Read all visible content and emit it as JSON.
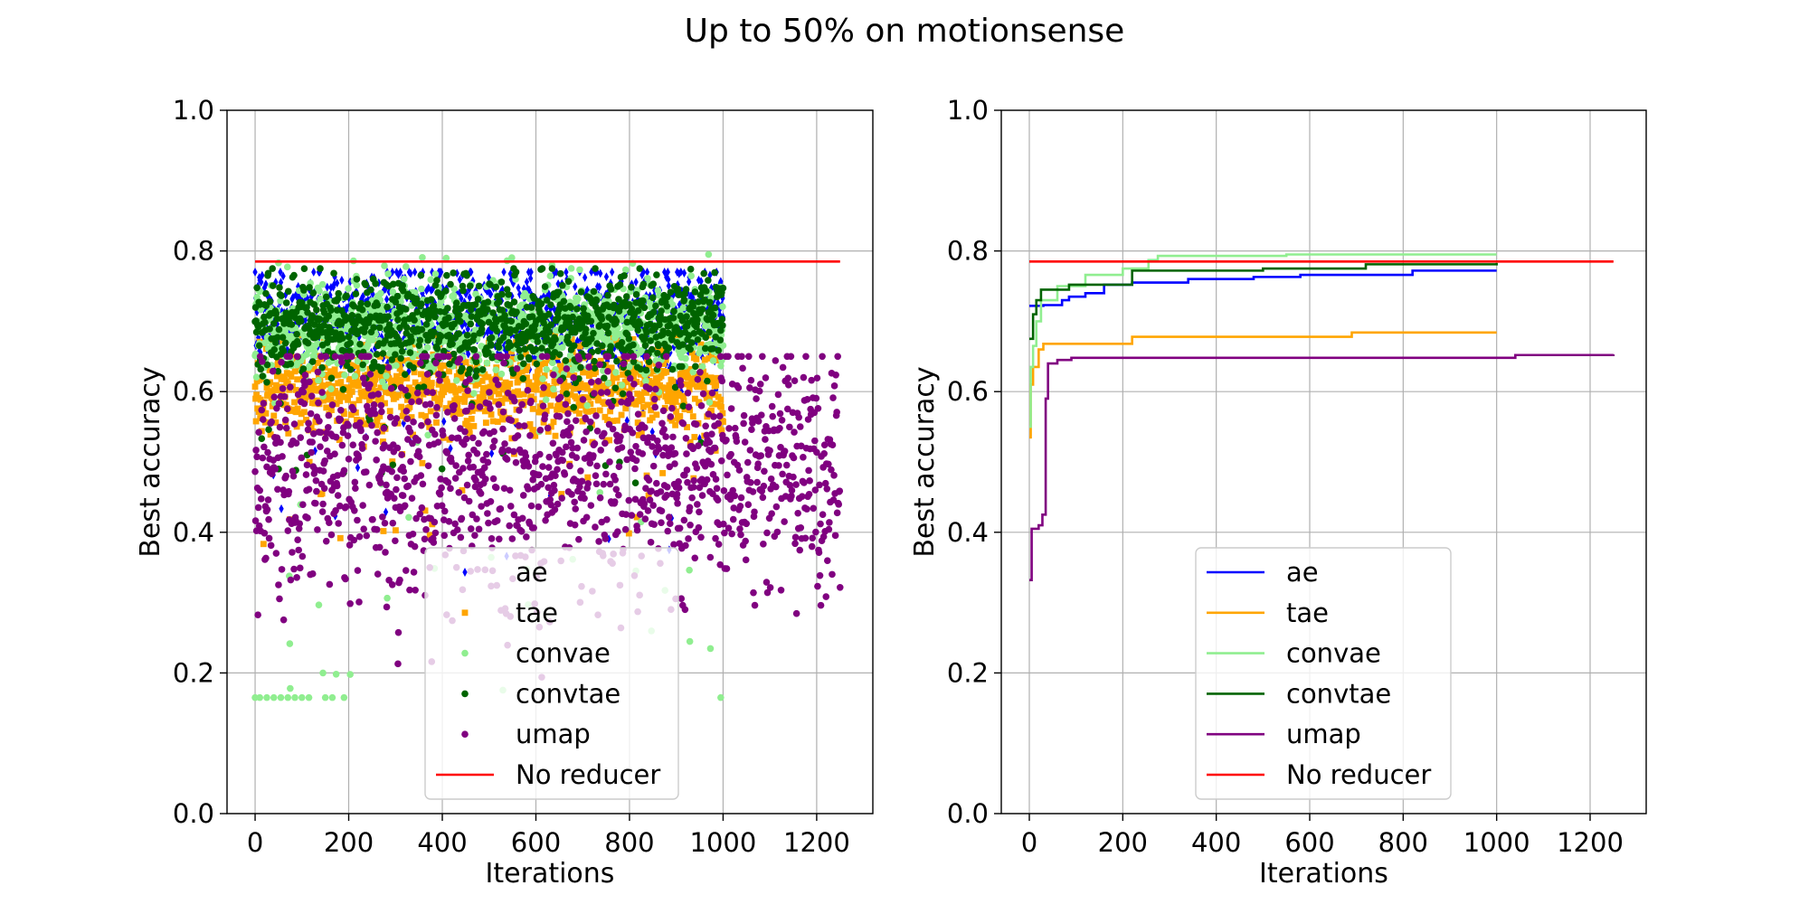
{
  "title": "Up to 50% on motionsense",
  "chart_data": [
    {
      "type": "scatter",
      "xlabel": "Iterations",
      "ylabel": "Best accuracy",
      "xlim": [
        -60,
        1320
      ],
      "ylim": [
        0.0,
        1.0
      ],
      "xticks": [
        0,
        200,
        400,
        600,
        800,
        1000,
        1200
      ],
      "yticks": [
        0.0,
        0.2,
        0.4,
        0.6,
        0.8,
        1.0
      ],
      "grid": true,
      "legend_position": "lower center",
      "series": [
        {
          "name": "ae",
          "color": "#0000ff",
          "marker": "diamond",
          "x_range": [
            0,
            1000
          ],
          "y_range": [
            0.36,
            0.77
          ],
          "y_center": 0.705,
          "approx_count": 1000
        },
        {
          "name": "tae",
          "color": "#ffa500",
          "marker": "square",
          "x_range": [
            0,
            1000
          ],
          "y_range": [
            0.37,
            0.68
          ],
          "y_center": 0.605,
          "approx_count": 1000
        },
        {
          "name": "convae",
          "color": "#90ee90",
          "marker": "circle",
          "x_range": [
            0,
            1000
          ],
          "y_range": [
            0.165,
            0.795
          ],
          "y_center": 0.69,
          "approx_count": 1000,
          "outliers": [
            [
              0,
              0.165
            ],
            [
              10,
              0.165
            ],
            [
              25,
              0.165
            ],
            [
              40,
              0.165
            ],
            [
              55,
              0.165
            ],
            [
              70,
              0.165
            ],
            [
              75,
              0.178
            ],
            [
              85,
              0.165
            ],
            [
              100,
              0.165
            ],
            [
              115,
              0.165
            ],
            [
              145,
              0.2
            ],
            [
              150,
              0.165
            ],
            [
              165,
              0.165
            ],
            [
              190,
              0.165
            ],
            [
              995,
              0.165
            ]
          ]
        },
        {
          "name": "convtae",
          "color": "#006400",
          "marker": "circle",
          "x_range": [
            0,
            1000
          ],
          "y_range": [
            0.47,
            0.775
          ],
          "y_center": 0.695,
          "approx_count": 1000
        },
        {
          "name": "umap",
          "color": "#800080",
          "marker": "circle",
          "x_range": [
            0,
            1250
          ],
          "y_range": [
            0.19,
            0.65
          ],
          "y_center": 0.49,
          "approx_count": 1250
        },
        {
          "name": "No reducer",
          "color": "#ff0000",
          "marker": "line",
          "x": [
            0,
            1250
          ],
          "y": [
            0.785,
            0.785
          ]
        }
      ]
    },
    {
      "type": "line",
      "xlabel": "Iterations",
      "ylabel": "Best accuracy",
      "xlim": [
        -60,
        1320
      ],
      "ylim": [
        0.0,
        1.0
      ],
      "xticks": [
        0,
        200,
        400,
        600,
        800,
        1000,
        1200
      ],
      "yticks": [
        0.0,
        0.2,
        0.4,
        0.6,
        0.8,
        1.0
      ],
      "grid": true,
      "legend_position": "lower center",
      "series": [
        {
          "name": "ae",
          "color": "#0000ff",
          "step": true,
          "x": [
            0,
            30,
            70,
            85,
            120,
            160,
            220,
            340,
            480,
            580,
            820,
            1000
          ],
          "y": [
            0.722,
            0.723,
            0.73,
            0.735,
            0.74,
            0.752,
            0.755,
            0.76,
            0.763,
            0.766,
            0.772,
            0.772
          ]
        },
        {
          "name": "tae",
          "color": "#ffa500",
          "step": true,
          "x": [
            0,
            3,
            8,
            20,
            30,
            220,
            690,
            1000
          ],
          "y": [
            0.535,
            0.61,
            0.635,
            0.66,
            0.668,
            0.678,
            0.684,
            0.684
          ]
        },
        {
          "name": "convae",
          "color": "#90ee90",
          "step": true,
          "x": [
            0,
            3,
            8,
            15,
            25,
            60,
            120,
            200,
            255,
            275,
            550,
            1000
          ],
          "y": [
            0.55,
            0.635,
            0.665,
            0.7,
            0.73,
            0.75,
            0.766,
            0.775,
            0.787,
            0.793,
            0.795,
            0.795
          ]
        },
        {
          "name": "convtae",
          "color": "#006400",
          "step": true,
          "x": [
            0,
            8,
            15,
            25,
            85,
            220,
            500,
            720,
            1000
          ],
          "y": [
            0.675,
            0.71,
            0.73,
            0.745,
            0.752,
            0.772,
            0.775,
            0.781,
            0.783
          ]
        },
        {
          "name": "umap",
          "color": "#800080",
          "step": true,
          "x": [
            0,
            5,
            20,
            28,
            35,
            40,
            60,
            90,
            1040,
            1250
          ],
          "y": [
            0.332,
            0.405,
            0.41,
            0.425,
            0.59,
            0.64,
            0.645,
            0.648,
            0.652,
            0.653
          ]
        },
        {
          "name": "No reducer",
          "color": "#ff0000",
          "step": false,
          "x": [
            0,
            1250
          ],
          "y": [
            0.785,
            0.785
          ]
        }
      ]
    }
  ]
}
